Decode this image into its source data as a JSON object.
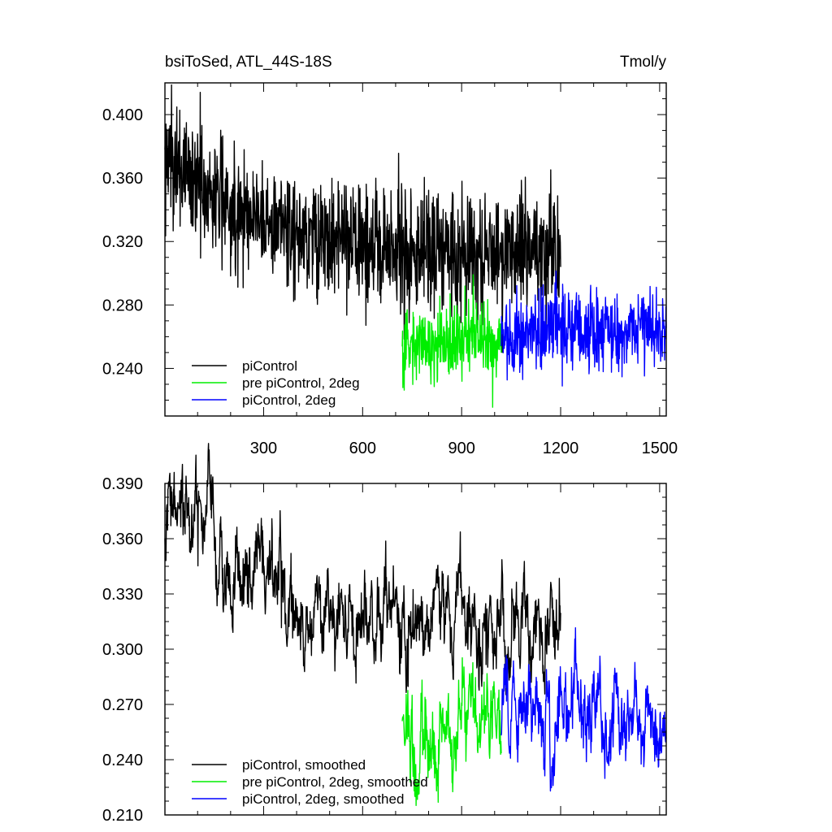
{
  "header": {
    "left_title": "bsiToSed, ATL_44S-18S",
    "right_title": "Tmol/y"
  },
  "chart_data": [
    {
      "type": "line",
      "xlim": [
        1,
        1520
      ],
      "ylim": [
        0.21,
        0.42
      ],
      "x_ticks": [
        300,
        600,
        900,
        1200,
        1500
      ],
      "x_tick_labels": [
        "300",
        "600",
        "900",
        "1200",
        "1500"
      ],
      "y_ticks": [
        0.24,
        0.28,
        0.32,
        0.36,
        0.4
      ],
      "y_tick_labels": [
        "0.240",
        "0.280",
        "0.320",
        "0.360",
        "0.400"
      ],
      "grid": false,
      "legend_position": "bottom-left",
      "series": [
        {
          "name": "piControl",
          "color": "#000000",
          "x_range": [
            1,
            1200
          ],
          "x_sample": [
            0,
            100,
            200,
            300,
            400,
            500,
            600,
            700,
            800,
            900,
            1000,
            1100,
            1200
          ],
          "y_sample": [
            0.372,
            0.358,
            0.342,
            0.334,
            0.327,
            0.322,
            0.318,
            0.315,
            0.314,
            0.313,
            0.312,
            0.312,
            0.312
          ]
        },
        {
          "name": "pre piControl, 2deg",
          "color": "#00ee00",
          "x_range": [
            720,
            1020
          ],
          "x_sample": [
            720,
            800,
            900,
            1020
          ],
          "y_sample": [
            0.252,
            0.256,
            0.258,
            0.26
          ]
        },
        {
          "name": "piControl, 2deg",
          "color": "#0000ff",
          "x_range": [
            1020,
            1520
          ],
          "x_sample": [
            1020,
            1200,
            1400,
            1520
          ],
          "y_sample": [
            0.262,
            0.264,
            0.265,
            0.265
          ]
        }
      ]
    },
    {
      "type": "line",
      "xlim": [
        1,
        1520
      ],
      "ylim": [
        0.21,
        0.39
      ],
      "x_ticks": [
        300,
        600,
        900,
        1200,
        1500
      ],
      "y_ticks": [
        0.21,
        0.24,
        0.27,
        0.3,
        0.33,
        0.36,
        0.39
      ],
      "y_tick_labels": [
        "0.210",
        "0.240",
        "0.270",
        "0.300",
        "0.330",
        "0.360",
        "0.390"
      ],
      "grid": false,
      "legend_position": "bottom-left",
      "series": [
        {
          "name": "piControl, smoothed",
          "color": "#000000",
          "x_range": [
            1,
            1200
          ],
          "x_sample": [
            0,
            40,
            100,
            200,
            300,
            400,
            500,
            600,
            700,
            800,
            900,
            1000,
            1100,
            1200
          ],
          "y_sample": [
            0.364,
            0.372,
            0.358,
            0.344,
            0.334,
            0.327,
            0.322,
            0.318,
            0.315,
            0.314,
            0.313,
            0.312,
            0.312,
            0.314
          ]
        },
        {
          "name": "pre piControl, 2deg, smoothed",
          "color": "#00ee00",
          "x_range": [
            720,
            1020
          ],
          "x_sample": [
            720,
            740,
            760,
            800,
            850,
            900,
            960,
            1020
          ],
          "y_sample": [
            0.262,
            0.247,
            0.236,
            0.248,
            0.256,
            0.26,
            0.262,
            0.26
          ]
        },
        {
          "name": "piControl, 2deg, smoothed",
          "color": "#0000ff",
          "x_range": [
            1020,
            1520
          ],
          "x_sample": [
            1020,
            1100,
            1200,
            1300,
            1400,
            1520
          ],
          "y_sample": [
            0.262,
            0.258,
            0.265,
            0.268,
            0.267,
            0.266
          ]
        }
      ]
    }
  ]
}
